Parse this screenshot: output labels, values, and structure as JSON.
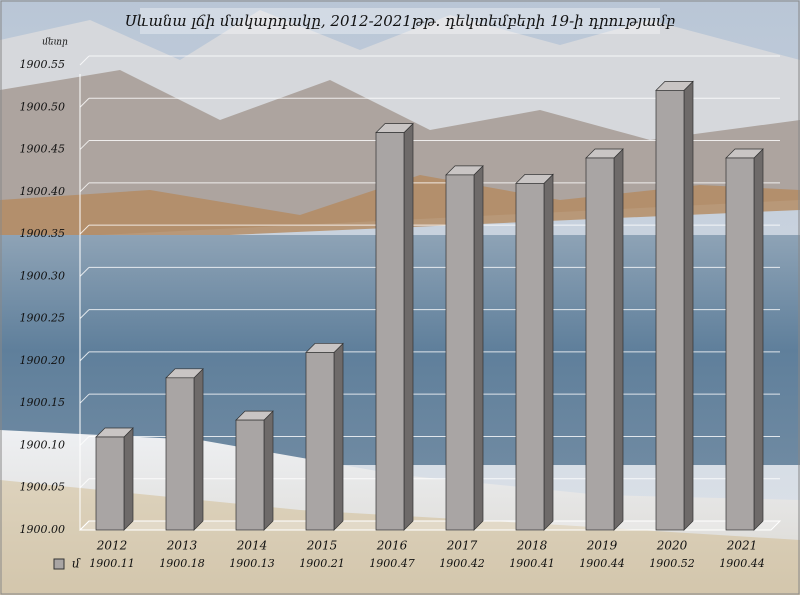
{
  "chart_data": {
    "type": "bar3d",
    "title": "Սևանա լճի մակարդակը, 2012-2021թթ. դեկտեմբերի 19-ի դրությամբ",
    "y_label": "մետր",
    "categories": [
      "2012",
      "2013",
      "2014",
      "2015",
      "2016",
      "2017",
      "2018",
      "2019",
      "2020",
      "2021"
    ],
    "series": [
      {
        "name": "մ",
        "color": "#a9a5a4",
        "values": [
          1900.11,
          1900.18,
          1900.13,
          1900.21,
          1900.47,
          1900.42,
          1900.41,
          1900.44,
          1900.52,
          1900.44
        ]
      }
    ],
    "ylim": [
      1900,
      1900.55
    ],
    "yticks": [
      {
        "value": 1900,
        "label": "1900.00"
      },
      1900.05,
      {
        "value": 1900.1,
        "label": "1900.10"
      },
      1900.15,
      {
        "value": 1900.2,
        "label": "1900.20"
      },
      1900.25,
      {
        "value": 1900.3,
        "label": "1900.30"
      },
      1900.35,
      {
        "value": 1900.4,
        "label": "1900.40"
      },
      1900.45,
      {
        "value": 1900.5,
        "label": "1900.50"
      },
      1900.55
    ],
    "grid": true,
    "data_table": true
  }
}
